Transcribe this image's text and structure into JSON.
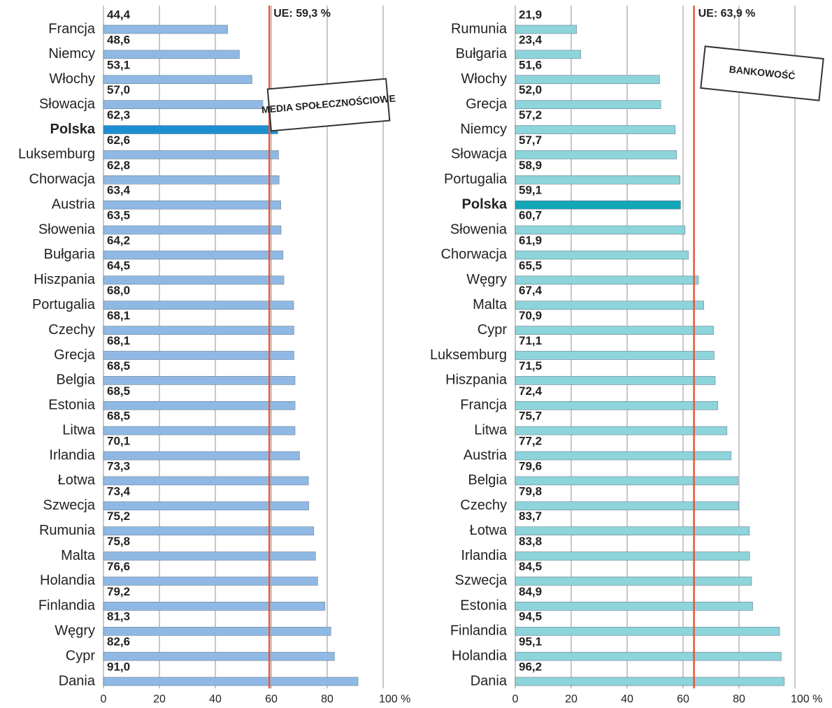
{
  "chart_data": [
    {
      "type": "bar",
      "orientation": "horizontal",
      "annotation": "MEDIA SPOŁECZNOŚCIOWE",
      "categories": [
        "Francja",
        "Niemcy",
        "Włochy",
        "Słowacja",
        "Polska",
        "Luksemburg",
        "Chorwacja",
        "Austria",
        "Słowenia",
        "Bułgaria",
        "Hiszpania",
        "Portugalia",
        "Czechy",
        "Grecja",
        "Belgia",
        "Estonia",
        "Litwa",
        "Irlandia",
        "Łotwa",
        "Szwecja",
        "Rumunia",
        "Malta",
        "Holandia",
        "Finlandia",
        "Węgry",
        "Cypr",
        "Dania"
      ],
      "values": [
        44.4,
        48.6,
        53.1,
        57,
        62.3,
        62.6,
        62.8,
        63.4,
        63.5,
        64.2,
        64.5,
        68,
        68.1,
        68.1,
        68.5,
        68.5,
        68.5,
        70.1,
        73.3,
        73.4,
        75.2,
        75.8,
        76.6,
        79.2,
        81.3,
        82.6,
        91
      ],
      "value_labels": [
        "44,4",
        "48,6",
        "53,1",
        "57,0",
        "62,3",
        "62,6",
        "62,8",
        "63,4",
        "63,5",
        "64,2",
        "64,5",
        "68,0",
        "68,1",
        "68,1",
        "68,5",
        "68,5",
        "68,5",
        "70,1",
        "73,3",
        "73,4",
        "75,2",
        "75,8",
        "76,6",
        "79,2",
        "81,3",
        "82,6",
        "91,0"
      ],
      "color": "#8fb9e4",
      "highlight": "Polska",
      "highlight_color": "#1b8fd2",
      "reference": {
        "value": 59.3,
        "label": "UE: 59,3 %",
        "color": "#e8553a"
      },
      "xlim": [
        0,
        100
      ],
      "xticks": [
        0,
        20,
        40,
        60,
        80,
        {
          "value": 100,
          "label": "100 %"
        }
      ],
      "grid": true
    },
    {
      "type": "bar",
      "orientation": "horizontal",
      "annotation": "BANKOWOŚĆ",
      "categories": [
        "Rumunia",
        "Bułgaria",
        "Włochy",
        "Grecja",
        "Niemcy",
        "Słowacja",
        "Portugalia",
        "Polska",
        "Słowenia",
        "Chorwacja",
        "Węgry",
        "Malta",
        "Cypr",
        "Luksemburg",
        "Hiszpania",
        "Francja",
        "Litwa",
        "Austria",
        "Belgia",
        "Czechy",
        "Łotwa",
        "Irlandia",
        "Szwecja",
        "Estonia",
        "Finlandia",
        "Holandia",
        "Dania"
      ],
      "values": [
        21.9,
        23.4,
        51.6,
        52,
        57.2,
        57.7,
        58.9,
        59.1,
        60.7,
        61.9,
        65.5,
        67.4,
        70.9,
        71.1,
        71.5,
        72.4,
        75.7,
        77.2,
        79.6,
        79.8,
        83.7,
        83.8,
        84.5,
        84.9,
        94.5,
        95.1,
        96.2
      ],
      "value_labels": [
        "21,9",
        "23,4",
        "51,6",
        "52,0",
        "57,2",
        "57,7",
        "58,9",
        "59,1",
        "60,7",
        "61,9",
        "65,5",
        "67,4",
        "70,9",
        "71,1",
        "71,5",
        "72,4",
        "75,7",
        "77,2",
        "79,6",
        "79,8",
        "83,7",
        "83,8",
        "84,5",
        "84,9",
        "94,5",
        "95,1",
        "96,2"
      ],
      "color": "#8dd4db",
      "highlight": "Polska",
      "highlight_color": "#12a6b6",
      "reference": {
        "value": 63.9,
        "label": "UE: 63,9 %",
        "color": "#e8553a"
      },
      "xlim": [
        0,
        100
      ],
      "xticks": [
        0,
        20,
        40,
        60,
        80,
        {
          "value": 100,
          "label": "100 %"
        }
      ],
      "grid": true
    }
  ]
}
